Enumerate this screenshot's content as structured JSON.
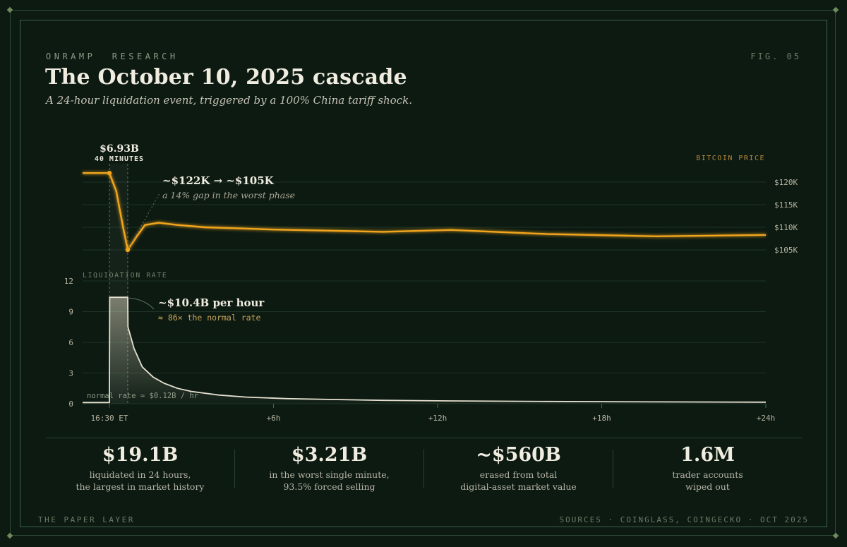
{
  "header": {
    "kicker": "ONRAMP  RESEARCH",
    "fig": "FIG. 05",
    "title": "The October 10, 2025 cascade",
    "subtitle": "A 24-hour liquidation event, triggered by a 100% China tariff shock."
  },
  "annotations": {
    "window_value": "$6.93B",
    "window_label": "40 MINUTES",
    "price_drop": "~$122K → ~$105K",
    "price_drop_note": "a 14% gap in the worst phase",
    "peak_rate": "~$10.4B per hour",
    "peak_rate_note": "≈ 86× the normal rate",
    "normal_rate": "normal rate ≈ $0.12B / hr"
  },
  "chart_data": [
    {
      "type": "line",
      "ylabel": "BITCOIN PRICE",
      "y_tick_labels": [
        "$105K",
        "$110K",
        "$115K",
        "$120K"
      ],
      "y_ticks": [
        105000,
        110000,
        115000,
        120000
      ],
      "ylim": [
        103000,
        124000
      ],
      "xlim": [
        0,
        24
      ],
      "x_tick_labels": [
        "16:30 ET",
        "+6h",
        "+12h",
        "+18h",
        "+24h"
      ],
      "x_ticks": [
        0,
        6,
        12,
        18,
        24
      ],
      "series": [
        {
          "color": "#f2a51c",
          "x": [
            -1,
            0,
            0.25,
            0.5,
            0.67,
            1.0,
            1.3,
            1.8,
            2.5,
            3.5,
            6,
            10,
            12.5,
            16,
            20,
            24
          ],
          "y": [
            122000,
            122000,
            118000,
            110000,
            105000,
            108000,
            110500,
            111000,
            110500,
            110000,
            109500,
            109000,
            109400,
            108500,
            108000,
            108300
          ]
        }
      ],
      "markers": [
        {
          "x": 0,
          "y": 122000
        },
        {
          "x": 0.67,
          "y": 105000
        }
      ]
    },
    {
      "type": "area",
      "ylabel": "LIQUIDATION RATE",
      "y_ticks": [
        0,
        3,
        6,
        9,
        12
      ],
      "ylim": [
        0,
        12
      ],
      "xlim": [
        0,
        24
      ],
      "x_ticks": [
        0,
        6,
        12,
        18,
        24
      ],
      "series": [
        {
          "color": "#e6e0cf",
          "x": [
            -1,
            0,
            0.01,
            0.67,
            0.68,
            0.9,
            1.2,
            1.6,
            2.0,
            2.5,
            3.0,
            4.0,
            5.0,
            6.5,
            8.0,
            10.0,
            12.0,
            16.0,
            20.0,
            24.0
          ],
          "y": [
            0.12,
            0.12,
            10.4,
            10.4,
            7.5,
            5.4,
            3.6,
            2.6,
            2.0,
            1.5,
            1.2,
            0.85,
            0.65,
            0.5,
            0.42,
            0.33,
            0.28,
            0.22,
            0.18,
            0.15
          ]
        }
      ]
    }
  ],
  "stats": [
    {
      "value": "$19.1B",
      "line1": "liquidated in 24 hours,",
      "line2": "the largest in market history"
    },
    {
      "value": "$3.21B",
      "line1": "in the worst single minute,",
      "line2": "93.5% forced selling"
    },
    {
      "value": "~$560B",
      "line1": "erased from total",
      "line2": "digital-asset market value"
    },
    {
      "value": "1.6M",
      "line1": "trader accounts",
      "line2": "wiped out"
    }
  ],
  "footer": {
    "left": "THE PAPER LAYER",
    "right": "SOURCES · COINGLASS, COINGECKO · OCT 2025"
  }
}
